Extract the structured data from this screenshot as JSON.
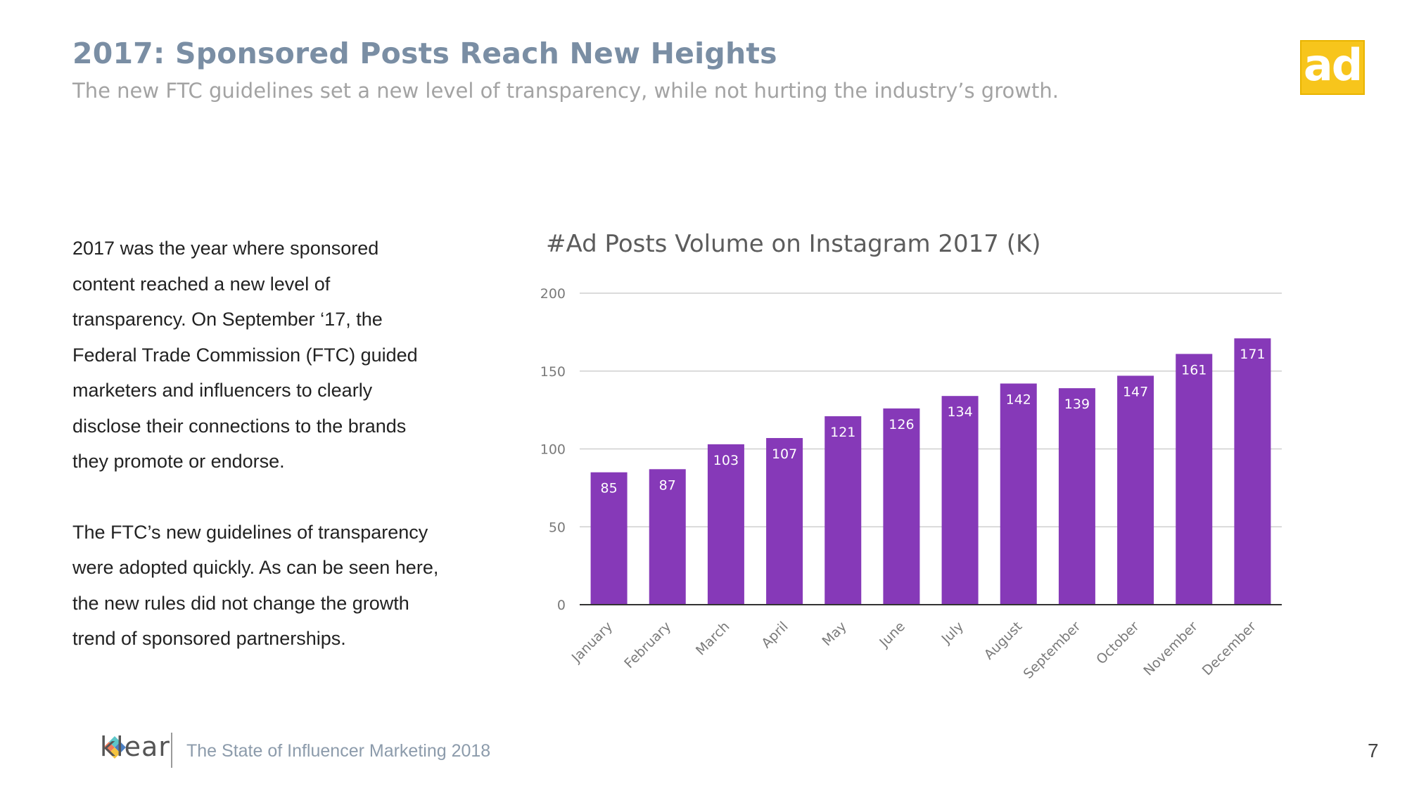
{
  "header": {
    "title": "2017: Sponsored Posts Reach New Heights",
    "subtitle": "The new FTC guidelines set a new level of transparency, while not hurting the industry’s growth."
  },
  "logo": {
    "text": "ad",
    "color": "#f7c51c"
  },
  "body": {
    "paragraph_1": [
      "2017 was the year where sponsored",
      "content reached a new level of",
      "transparency. On September ‘17, the",
      "Federal Trade Commission (FTC) guided",
      "marketers and influencers to clearly",
      "disclose their connections to the brands",
      "they promote or endorse."
    ],
    "paragraph_2": [
      "The FTC’s new guidelines of transparency",
      "were adopted quickly. As can be seen here,",
      "the new rules did not change the growth",
      "trend of sponsored partnerships."
    ]
  },
  "chart_data": {
    "type": "bar",
    "title": "#Ad Posts Volume on Instagram 2017 (K)",
    "categories": [
      "January",
      "February",
      "March",
      "April",
      "May",
      "June",
      "July",
      "August",
      "September",
      "October",
      "November",
      "December"
    ],
    "values": [
      85,
      87,
      103,
      107,
      121,
      126,
      134,
      142,
      139,
      147,
      161,
      171
    ],
    "ylim": [
      0,
      200
    ],
    "yticks": [
      0,
      50,
      100,
      150,
      200
    ],
    "xlabel": "",
    "ylabel": "",
    "grid": true,
    "data_labels": true,
    "bar_color": "#8639b8",
    "label_color": "#ffffff"
  },
  "footer": {
    "brand": "klear",
    "text": "The State of Influencer Marketing 2018",
    "page_number": "7"
  }
}
